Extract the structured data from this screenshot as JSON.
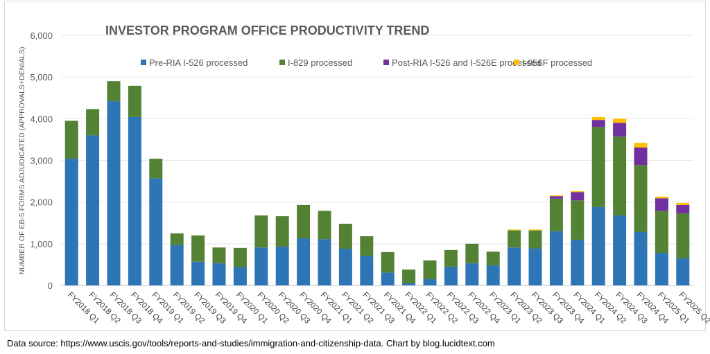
{
  "chart_data": {
    "type": "bar",
    "stacked": true,
    "title": "INVESTOR PROGRAM OFFICE PRODUCTIVITY TREND",
    "xlabel": "",
    "ylabel": "NUMBER OF EB-5 FORMS ADJUDICATED (APPROVALS+DENIALS)",
    "ylim": [
      0,
      6000
    ],
    "yticks": [
      "0",
      "1,000",
      "2,000",
      "3,000",
      "4,000",
      "5,000",
      "6,000"
    ],
    "ytick_values": [
      0,
      1000,
      2000,
      3000,
      4000,
      5000,
      6000
    ],
    "grid": true,
    "legend_position": "top",
    "categories": [
      "FY2018 Q1",
      "FY2018 Q2",
      "FY2018 Q3",
      "FY2018 Q4",
      "FY2019 Q1",
      "FY2019 Q2",
      "FY2019 Q3",
      "FY2019 Q4",
      "FY2020 Q1",
      "FY2020 Q2",
      "FY2020 Q3",
      "FY2020 Q4",
      "FY2021 Q1",
      "FY2021 Q2",
      "FY2021 Q3",
      "FY2021 Q4",
      "FY2022 Q1",
      "FY2022 Q2",
      "FY2022 Q3",
      "FY2022 Q4",
      "FY2023 Q1",
      "FY2023 Q2",
      "FY2023 Q3",
      "FY2023 Q4",
      "FY2024 Q1",
      "FY2024 Q2",
      "FY2024 Q3",
      "FY2024 Q4",
      "FY2025 Q1",
      "FY2025 Q2"
    ],
    "series": [
      {
        "name": "Pre-RIA I-526 processed",
        "color": "#2e75b6",
        "values": [
          3040,
          3600,
          4420,
          4040,
          2570,
          970,
          570,
          530,
          440,
          910,
          930,
          1130,
          1110,
          880,
          710,
          310,
          50,
          150,
          450,
          530,
          480,
          910,
          890,
          1300,
          1090,
          1880,
          1680,
          1280,
          780,
          650
        ]
      },
      {
        "name": "I-829 processed",
        "color": "#548235",
        "values": [
          910,
          630,
          480,
          750,
          470,
          280,
          630,
          380,
          460,
          770,
          730,
          800,
          680,
          600,
          470,
          490,
          330,
          450,
          400,
          470,
          330,
          410,
          430,
          780,
          950,
          1920,
          1890,
          1610,
          1010,
          1080
        ]
      },
      {
        "name": "Post-RIA I-526 and I-526E processed",
        "color": "#7030a0",
        "values": [
          0,
          0,
          0,
          0,
          0,
          0,
          0,
          0,
          0,
          0,
          0,
          0,
          0,
          0,
          0,
          0,
          0,
          0,
          0,
          0,
          0,
          0,
          0,
          60,
          200,
          170,
          330,
          420,
          300,
          200
        ]
      },
      {
        "name": "I-956F processed",
        "color": "#ffc000",
        "values": [
          0,
          0,
          0,
          0,
          0,
          0,
          0,
          0,
          0,
          0,
          0,
          0,
          0,
          0,
          0,
          0,
          0,
          0,
          0,
          0,
          0,
          20,
          20,
          20,
          20,
          70,
          100,
          110,
          40,
          50
        ]
      }
    ]
  },
  "footer": {
    "source": "Data source: https://www.uscis.gov/tools/reports-and-studies/immigration-and-citizenship-data. Chart by blog.lucidtext.com"
  }
}
